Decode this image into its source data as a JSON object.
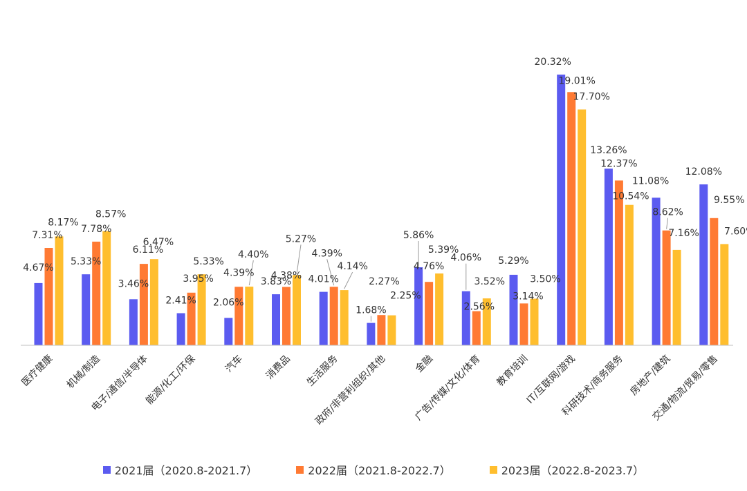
{
  "chart_data": {
    "type": "bar",
    "title": "",
    "xlabel": "",
    "ylabel": "",
    "ylim": [
      0,
      22
    ],
    "grid": false,
    "legend_position": "bottom",
    "categories": [
      "医疗健康",
      "机械/制造",
      "电子/通信/半导体",
      "能源/化工/环保",
      "汽车",
      "消费品",
      "生活服务",
      "政府/非营利组织/其他",
      "金融",
      "广告/传媒/文化/体育",
      "教育培训",
      "IT/互联网/游戏",
      "科研技术/商务服务",
      "房地产/建筑",
      "交通/物流/贸易/零售"
    ],
    "series": [
      {
        "name": "2021届（2020.8-2021.7）",
        "color": "#5B5BF0",
        "values": [
          4.67,
          5.33,
          3.46,
          2.41,
          2.06,
          3.83,
          4.01,
          1.68,
          5.86,
          4.06,
          5.29,
          20.32,
          13.26,
          11.08,
          12.08
        ]
      },
      {
        "name": "2022届（2021.8-2022.7）",
        "color": "#FF7A33",
        "values": [
          7.31,
          7.78,
          6.11,
          3.95,
          4.39,
          4.38,
          4.39,
          2.27,
          4.76,
          2.56,
          3.14,
          19.01,
          12.37,
          8.62,
          9.55
        ]
      },
      {
        "name": "2023届（2022.8-2023.7）",
        "color": "#FFBE2E",
        "values": [
          8.17,
          8.57,
          6.47,
          5.33,
          4.4,
          5.27,
          4.14,
          2.25,
          5.39,
          3.52,
          3.5,
          17.7,
          10.54,
          7.16,
          7.6
        ]
      }
    ],
    "value_labels": [
      [
        "4.67%",
        "5.33%",
        "3.46%",
        "2.41%",
        "2.06%",
        "3.83%",
        "4.01%",
        "1.68%",
        "5.86%",
        "4.06%",
        "5.29%",
        "20.32%",
        "13.26%",
        "11.08%",
        "12.08%"
      ],
      [
        "7.31%",
        "7.78%",
        "6.11%",
        "3.95%",
        "4.39%",
        "4.38%",
        "4.39%",
        "2.27%",
        "4.76%",
        "2.56%",
        "3.14%",
        "19.01%",
        "12.37%",
        "8.62%",
        "9.55%"
      ],
      [
        "8.17%",
        "8.57%",
        "6.47%",
        "5.33%",
        "4.40%",
        "5.27%",
        "4.14%",
        "2.25%",
        "5.39%",
        "3.52%",
        "3.50%",
        "17.70%",
        "10.54%",
        "7.16%",
        "7.60%"
      ]
    ]
  },
  "legend": {
    "items": [
      {
        "label": "2021届（2020.8-2021.7）",
        "color": "#5B5BF0"
      },
      {
        "label": "2022届（2021.8-2022.7）",
        "color": "#FF7A33"
      },
      {
        "label": "2023届（2022.8-2023.7）",
        "color": "#FFBE2E"
      }
    ]
  }
}
